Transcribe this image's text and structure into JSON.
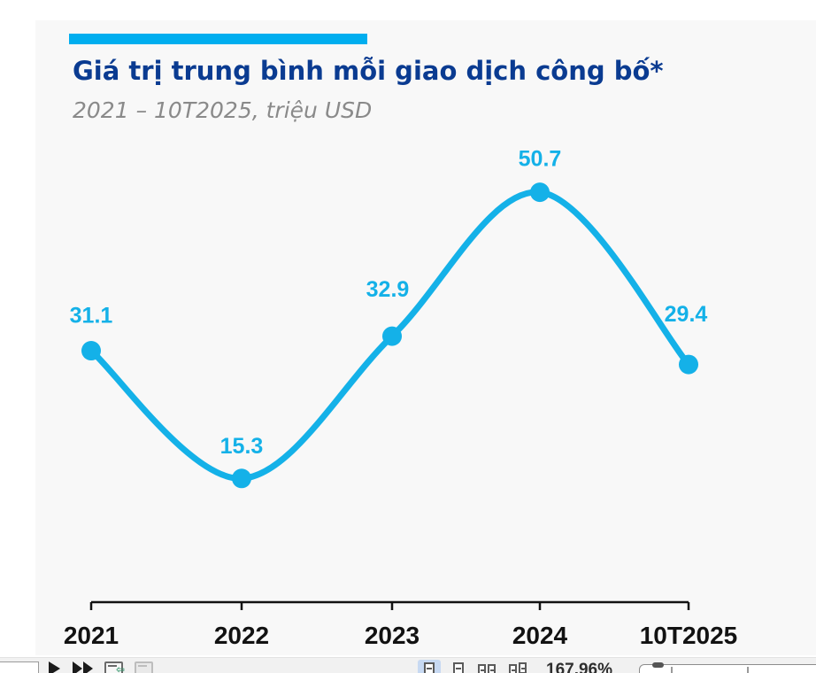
{
  "page": {
    "title": "Giá trị trung bình mỗi giao dịch công bố*",
    "subtitle": "2021 – 10T2025, triệu USD"
  },
  "chart_data": {
    "type": "line",
    "title": "Giá trị trung bình mỗi giao dịch công bố*",
    "subtitle": "2021 – 10T2025, triệu USD",
    "unit": "triệu USD",
    "categories": [
      "2021",
      "2022",
      "2023",
      "2024",
      "10T2025"
    ],
    "values": [
      31.1,
      15.3,
      32.9,
      50.7,
      29.4
    ],
    "data_labels": [
      "31.1",
      "15.3",
      "32.9",
      "50.7",
      "29.4"
    ],
    "ylim": [
      0,
      55
    ],
    "grid": "off",
    "legend": "none",
    "marker": "circle",
    "smooth": true
  },
  "colors": {
    "accent_bar_cyan": "#00AEEF",
    "line_cyan": "#14B1E8",
    "data_label_cyan": "#14B1E8",
    "title_navy": "#0A3B91",
    "subtitle_gray": "#8A8A8A",
    "axis_black": "#121212",
    "slide_background": "#f8f8f8",
    "selected_view_button_bg": "#c7d9f2"
  },
  "toolbar": {
    "zoom_level": "167.96%",
    "page_input_value": "",
    "icons": [
      "next-page-icon",
      "last-page-icon",
      "pane-with-green-arrow-icon",
      "pane-disabled-icon",
      "single-page-view-icon",
      "single-page-continuous-view-icon",
      "two-page-view-icon",
      "two-page-continuous-view-icon"
    ]
  }
}
